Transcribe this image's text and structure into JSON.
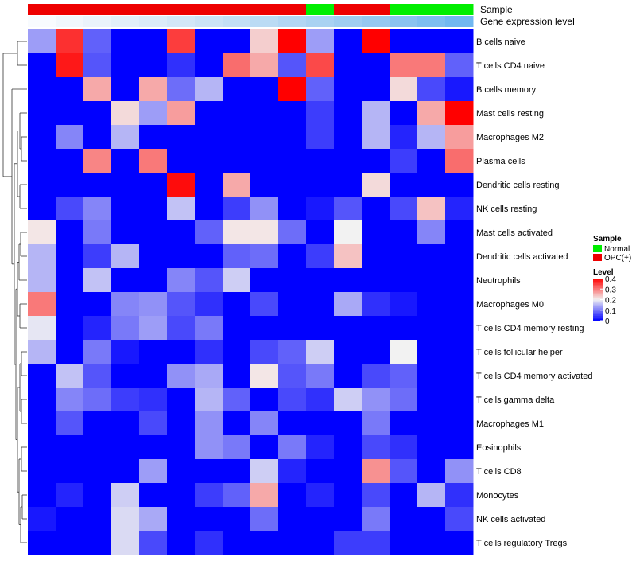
{
  "chart_data": {
    "type": "heatmap",
    "title": "",
    "annotation_labels": {
      "sample": "Sample",
      "gene_expression": "Gene expression level"
    },
    "legend": {
      "sample": {
        "title": "Sample",
        "entries": [
          {
            "label": "Normal",
            "color": "#00ee00"
          },
          {
            "label": "OPC(+)",
            "color": "#ee0000"
          }
        ]
      },
      "level": {
        "title": "Level",
        "ticks": [
          "0.4",
          "0.3",
          "0.2",
          "0.1",
          "0"
        ],
        "tick_values": [
          0.4,
          0.3,
          0.2,
          0.1,
          0
        ],
        "range": [
          0,
          0.4
        ],
        "colors": {
          "low": "#0000ff",
          "mid": "#f2f2f2",
          "high": "#ff0000"
        }
      }
    },
    "sample_groups": [
      "OPC(+)",
      "OPC(+)",
      "OPC(+)",
      "OPC(+)",
      "OPC(+)",
      "OPC(+)",
      "OPC(+)",
      "OPC(+)",
      "OPC(+)",
      "OPC(+)",
      "Normal",
      "OPC(+)",
      "OPC(+)",
      "Normal",
      "Normal",
      "Normal"
    ],
    "gene_expression_shades": [
      "#f8fbfe",
      "#f1f7fc",
      "#eaf3fb",
      "#e2eff9",
      "#dbebf8",
      "#d3e7f7",
      "#cbe3f6",
      "#c3dff5",
      "#bbdbf4",
      "#b2d6f3",
      "#a9d2f2",
      "#9fcdf1",
      "#95c8f1",
      "#8ac3f0",
      "#7ebef0",
      "#71b8f0"
    ],
    "rows": [
      "B cells naive",
      "T cells CD4 naive",
      "B cells memory",
      "Mast cells resting",
      "Macrophages M2",
      "Plasma cells",
      "Dendritic cells resting",
      "NK cells resting",
      "Mast cells activated",
      "Dendritic cells activated",
      "Neutrophils",
      "Macrophages M0",
      "T cells CD4 memory resting",
      "T cells follicular helper",
      "T cells CD4 memory activated",
      "T cells gamma delta",
      "Macrophages M1",
      "Eosinophils",
      "T cells CD8",
      "Monocytes",
      "NK cells activated",
      "T cells regulatory  Tregs"
    ],
    "values": [
      [
        0.13,
        0.36,
        0.08,
        0,
        0,
        0.35,
        0,
        0,
        0.23,
        0.4,
        0.13,
        0,
        0.4,
        0,
        0,
        0
      ],
      [
        0,
        0.38,
        0.07,
        0,
        0,
        0.04,
        0,
        0.31,
        0.26,
        0.07,
        0.34,
        0,
        0,
        0.3,
        0.3,
        0.08
      ],
      [
        0,
        0,
        0.26,
        0,
        0.26,
        0.09,
        0.15,
        0,
        0,
        0.4,
        0.08,
        0,
        0,
        0.22,
        0.06,
        0.02
      ],
      [
        0,
        0,
        0,
        0.22,
        0.13,
        0.27,
        0,
        0,
        0,
        0,
        0.05,
        0,
        0.15,
        0,
        0.26,
        0.4
      ],
      [
        0,
        0.11,
        0,
        0.15,
        0,
        0,
        0,
        0,
        0,
        0,
        0.05,
        0,
        0.15,
        0.03,
        0.15,
        0.27
      ],
      [
        0,
        0,
        0.29,
        0,
        0.3,
        0,
        0,
        0,
        0,
        0,
        0,
        0,
        0,
        0.05,
        0,
        0.31
      ],
      [
        0,
        0,
        0,
        0,
        0,
        0.39,
        0,
        0.26,
        0,
        0,
        0,
        0,
        0.22,
        0,
        0,
        0
      ],
      [
        0,
        0.06,
        0.11,
        0,
        0,
        0.16,
        0,
        0.05,
        0.12,
        0,
        0.02,
        0.07,
        0,
        0.06,
        0.24,
        0.03
      ],
      [
        0.21,
        0,
        0.1,
        0,
        0,
        0,
        0.08,
        0.21,
        0.21,
        0.09,
        0,
        0.2,
        0,
        0,
        0.11,
        0
      ],
      [
        0.15,
        0,
        0.05,
        0.15,
        0,
        0,
        0,
        0.08,
        0.09,
        0,
        0.05,
        0.24,
        0,
        0,
        0,
        0
      ],
      [
        0.15,
        0,
        0.16,
        0,
        0,
        0.11,
        0.07,
        0.17,
        0,
        0,
        0,
        0,
        0,
        0,
        0,
        0
      ],
      [
        0.3,
        0,
        0,
        0.11,
        0.12,
        0.07,
        0.04,
        0,
        0.06,
        0,
        0,
        0.14,
        0.04,
        0.02,
        0,
        0
      ],
      [
        0.19,
        0,
        0.03,
        0.1,
        0.13,
        0.06,
        0.1,
        0,
        0,
        0,
        0,
        0,
        0,
        0,
        0,
        0
      ],
      [
        0.15,
        0,
        0.1,
        0.02,
        0,
        0,
        0.04,
        0,
        0.06,
        0.08,
        0.17,
        0,
        0,
        0.2,
        0,
        0
      ],
      [
        0,
        0.16,
        0.07,
        0,
        0,
        0.12,
        0.14,
        0,
        0.21,
        0.07,
        0.1,
        0,
        0.06,
        0.08,
        0,
        0
      ],
      [
        0,
        0.11,
        0.09,
        0.05,
        0.04,
        0,
        0.15,
        0.08,
        0,
        0.06,
        0.04,
        0.17,
        0.12,
        0.09,
        0,
        0
      ],
      [
        0,
        0.07,
        0,
        0,
        0.06,
        0,
        0.12,
        0,
        0.11,
        0,
        0,
        0,
        0.1,
        0,
        0,
        0
      ],
      [
        0,
        0,
        0,
        0,
        0,
        0,
        0.12,
        0.1,
        0,
        0.1,
        0.03,
        0,
        0.06,
        0.04,
        0,
        0
      ],
      [
        0,
        0,
        0,
        0,
        0.13,
        0,
        0,
        0,
        0.17,
        0.03,
        0,
        0,
        0.28,
        0.07,
        0,
        0.12
      ],
      [
        0,
        0.03,
        0,
        0.17,
        0,
        0,
        0.05,
        0.08,
        0.26,
        0,
        0.03,
        0,
        0.06,
        0,
        0.15,
        0.04
      ],
      [
        0.02,
        0,
        0,
        0.18,
        0.14,
        0,
        0,
        0,
        0.09,
        0,
        0,
        0,
        0.1,
        0,
        0,
        0.06
      ],
      [
        0,
        0,
        0,
        0.18,
        0.06,
        0,
        0.04,
        0,
        0,
        0,
        0,
        0.05,
        0.05,
        0,
        0,
        0
      ]
    ]
  }
}
